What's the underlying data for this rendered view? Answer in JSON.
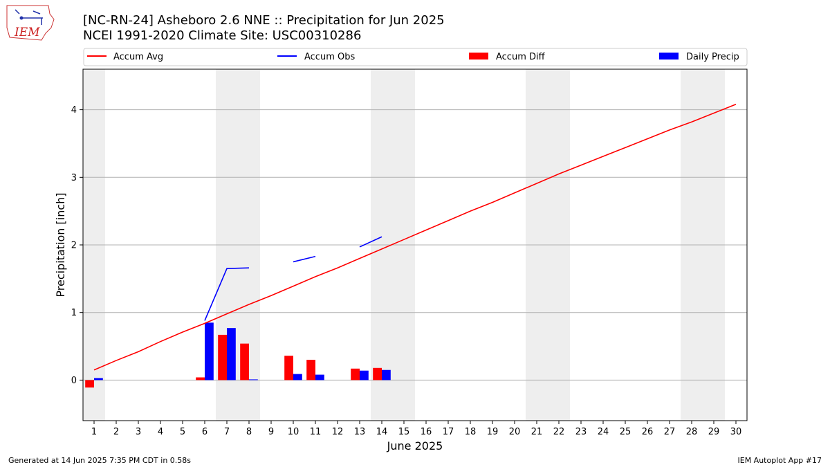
{
  "header": {
    "logo_text": "IEM",
    "title_line1": "[NC-RN-24] Asheboro 2.6 NNE :: Precipitation for Jun 2025",
    "title_line2": "NCEI 1991-2020 Climate Site: USC00310286"
  },
  "footer": {
    "left": "Generated at 14 Jun 2025 7:35 PM CDT in 0.58s",
    "right": "IEM Autoplot App #17"
  },
  "colors": {
    "avg": "#ff0000",
    "obs": "#0000ff",
    "diff": "#ff0000",
    "daily": "#0000ff",
    "weekend_band": "#eeeeee",
    "grid": "#b0b0b0"
  },
  "chart_data": {
    "type": "bar",
    "xlabel": "June 2025",
    "ylabel": "Precipitation [inch]",
    "x": [
      1,
      2,
      3,
      4,
      5,
      6,
      7,
      8,
      9,
      10,
      11,
      12,
      13,
      14,
      15,
      16,
      17,
      18,
      19,
      20,
      21,
      22,
      23,
      24,
      25,
      26,
      27,
      28,
      29,
      30
    ],
    "xlim": [
      0.5,
      30.5
    ],
    "ylim": [
      -0.6,
      4.6
    ],
    "yticks": [
      0,
      1,
      2,
      3,
      4
    ],
    "grid": "horizontal",
    "legend_placement": "top",
    "weekend_bands": [
      [
        0.5,
        1.5
      ],
      [
        6.5,
        8.5
      ],
      [
        13.5,
        15.5
      ],
      [
        20.5,
        22.5
      ],
      [
        27.5,
        29.5
      ]
    ],
    "series": [
      {
        "name": "Accum Avg",
        "kind": "line",
        "values": [
          0.15,
          0.29,
          0.42,
          0.57,
          0.71,
          0.84,
          0.98,
          1.12,
          1.25,
          1.39,
          1.53,
          1.66,
          1.8,
          1.94,
          2.08,
          2.22,
          2.36,
          2.5,
          2.63,
          2.77,
          2.91,
          3.05,
          3.18,
          3.31,
          3.44,
          3.57,
          3.7,
          3.82,
          3.95,
          4.08
        ]
      },
      {
        "name": "Accum Obs",
        "kind": "line",
        "values": [
          null,
          null,
          null,
          null,
          null,
          0.88,
          1.65,
          1.66,
          null,
          1.75,
          1.83,
          null,
          1.97,
          2.12,
          null,
          null,
          null,
          null,
          null,
          null,
          null,
          null,
          null,
          null,
          null,
          null,
          null,
          null,
          null,
          null
        ]
      },
      {
        "name": "Accum Diff",
        "kind": "bar",
        "values": [
          -0.11,
          null,
          null,
          null,
          null,
          0.04,
          0.67,
          0.54,
          null,
          0.36,
          0.3,
          null,
          0.17,
          0.18,
          null,
          null,
          null,
          null,
          null,
          null,
          null,
          null,
          null,
          null,
          null,
          null,
          null,
          null,
          null,
          null
        ]
      },
      {
        "name": "Daily Precip",
        "kind": "bar",
        "values": [
          0.03,
          null,
          null,
          null,
          null,
          0.85,
          0.77,
          0.01,
          null,
          0.09,
          0.08,
          null,
          0.14,
          0.15,
          null,
          null,
          null,
          null,
          null,
          null,
          null,
          null,
          null,
          null,
          null,
          null,
          null,
          null,
          null,
          null
        ]
      }
    ]
  }
}
